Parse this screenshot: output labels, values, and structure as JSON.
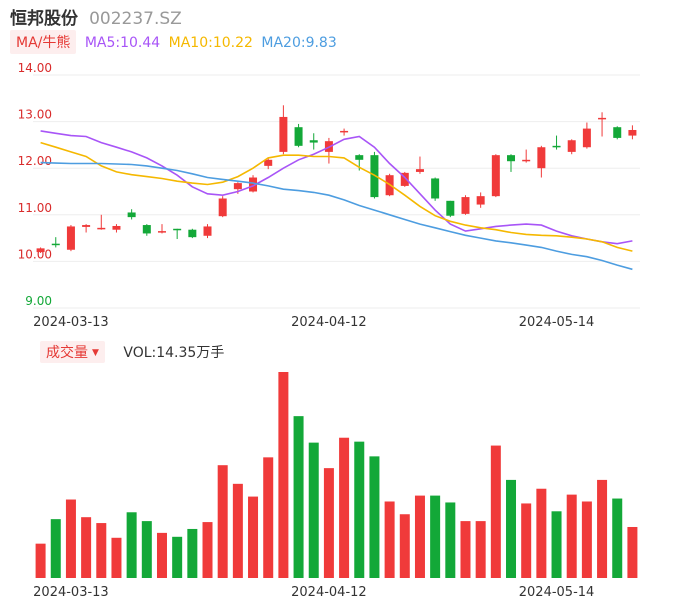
{
  "header": {
    "name": "恒邦股份",
    "code": "002237.SZ"
  },
  "ma_legend": {
    "tag": "MA/牛熊",
    "items": [
      {
        "label": "MA5:10.44",
        "color": "#a855f7"
      },
      {
        "label": "MA10:10.22",
        "color": "#f5b800"
      },
      {
        "label": "MA20:9.83",
        "color": "#4d9de0"
      }
    ]
  },
  "volume_legend": {
    "tag": "成交量",
    "value": "VOL:14.35万手"
  },
  "colors": {
    "up": "#f03a3a",
    "down": "#13a838",
    "grid": "#eeeeee",
    "ylabel": "#d92b2b",
    "ylabel_last": "#13a838"
  },
  "chart_data": {
    "type": "candlestick",
    "ylim": [
      9.0,
      14.0
    ],
    "yticks": [
      "14.00",
      "13.00",
      "12.00",
      "11.00",
      "10.00",
      "9.00"
    ],
    "xticks": [
      {
        "label": "2024-03-13",
        "index": 2
      },
      {
        "label": "2024-04-12",
        "index": 19
      },
      {
        "label": "2024-05-14",
        "index": 34
      }
    ],
    "candles": [
      [
        10.2,
        10.28,
        10.18,
        10.3
      ],
      [
        10.38,
        10.36,
        10.3,
        10.52
      ],
      [
        10.25,
        10.75,
        10.22,
        10.78
      ],
      [
        10.74,
        10.78,
        10.62,
        10.8
      ],
      [
        10.7,
        10.72,
        10.68,
        11.0
      ],
      [
        10.68,
        10.76,
        10.62,
        10.8
      ],
      [
        11.05,
        10.95,
        10.9,
        11.12
      ],
      [
        10.78,
        10.6,
        10.55,
        10.8
      ],
      [
        10.63,
        10.65,
        10.6,
        10.8
      ],
      [
        10.7,
        10.67,
        10.48,
        10.7
      ],
      [
        10.68,
        10.52,
        10.5,
        10.7
      ],
      [
        10.55,
        10.75,
        10.5,
        10.8
      ],
      [
        10.97,
        11.35,
        10.95,
        11.4
      ],
      [
        11.55,
        11.68,
        11.45,
        11.7
      ],
      [
        11.5,
        11.8,
        11.48,
        11.85
      ],
      [
        12.05,
        12.18,
        11.98,
        12.22
      ],
      [
        12.35,
        13.1,
        12.3,
        13.35
      ],
      [
        12.88,
        12.48,
        12.45,
        12.95
      ],
      [
        12.6,
        12.55,
        12.4,
        12.75
      ],
      [
        12.35,
        12.58,
        12.1,
        12.65
      ],
      [
        12.78,
        12.8,
        12.7,
        12.85
      ],
      [
        12.28,
        12.18,
        11.95,
        12.3
      ],
      [
        12.28,
        11.38,
        11.35,
        12.35
      ],
      [
        11.42,
        11.85,
        11.4,
        11.88
      ],
      [
        11.62,
        11.9,
        11.6,
        11.92
      ],
      [
        11.92,
        11.98,
        11.88,
        12.25
      ],
      [
        11.78,
        11.35,
        11.3,
        11.8
      ],
      [
        11.3,
        10.98,
        10.95,
        11.3
      ],
      [
        11.02,
        11.38,
        11.0,
        11.42
      ],
      [
        11.22,
        11.4,
        11.15,
        11.48
      ],
      [
        11.4,
        12.28,
        11.38,
        12.3
      ],
      [
        12.28,
        12.15,
        11.92,
        12.3
      ],
      [
        12.15,
        12.18,
        12.12,
        12.4
      ],
      [
        12.0,
        12.45,
        11.8,
        12.48
      ],
      [
        12.48,
        12.45,
        12.4,
        12.7
      ],
      [
        12.35,
        12.6,
        12.3,
        12.62
      ],
      [
        12.45,
        12.85,
        12.42,
        12.98
      ],
      [
        13.05,
        13.08,
        12.68,
        13.2
      ],
      [
        12.88,
        12.65,
        12.62,
        12.9
      ],
      [
        12.7,
        12.82,
        12.62,
        12.92
      ]
    ],
    "ma5": [
      12.8,
      12.75,
      12.7,
      12.68,
      12.55,
      12.45,
      12.35,
      12.22,
      12.05,
      11.85,
      11.6,
      11.45,
      11.42,
      11.5,
      11.62,
      11.8,
      12.0,
      12.18,
      12.3,
      12.45,
      12.62,
      12.68,
      12.45,
      12.1,
      11.8,
      11.45,
      11.1,
      10.8,
      10.65,
      10.7,
      10.75,
      10.78,
      10.8,
      10.78,
      10.65,
      10.55,
      10.48,
      10.42,
      10.38,
      10.44
    ],
    "ma10": [
      12.55,
      12.45,
      12.35,
      12.25,
      12.05,
      11.92,
      11.86,
      11.82,
      11.78,
      11.72,
      11.68,
      11.65,
      11.7,
      11.82,
      12.0,
      12.22,
      12.28,
      12.28,
      12.25,
      12.25,
      12.22,
      12.02,
      11.85,
      11.65,
      11.42,
      11.18,
      10.98,
      10.86,
      10.78,
      10.72,
      10.68,
      10.62,
      10.58,
      10.56,
      10.55,
      10.52,
      10.48,
      10.42,
      10.3,
      10.22
    ],
    "ma20": [
      12.12,
      12.11,
      12.1,
      12.1,
      12.1,
      12.09,
      12.08,
      12.05,
      12.0,
      11.95,
      11.88,
      11.8,
      11.76,
      11.72,
      11.68,
      11.62,
      11.55,
      11.52,
      11.48,
      11.42,
      11.32,
      11.2,
      11.1,
      11.0,
      10.9,
      10.8,
      10.72,
      10.64,
      10.56,
      10.5,
      10.44,
      10.4,
      10.35,
      10.3,
      10.22,
      10.15,
      10.1,
      10.02,
      9.92,
      9.83
    ],
    "volume": [
      35,
      60,
      80,
      62,
      56,
      41,
      67,
      58,
      46,
      42,
      50,
      57,
      115,
      96,
      83,
      123,
      210,
      165,
      138,
      112,
      143,
      139,
      124,
      78,
      65,
      84,
      84,
      77,
      58,
      58,
      135,
      100,
      76,
      91,
      68,
      85,
      78,
      100,
      81,
      52
    ],
    "volume_max": 210
  }
}
